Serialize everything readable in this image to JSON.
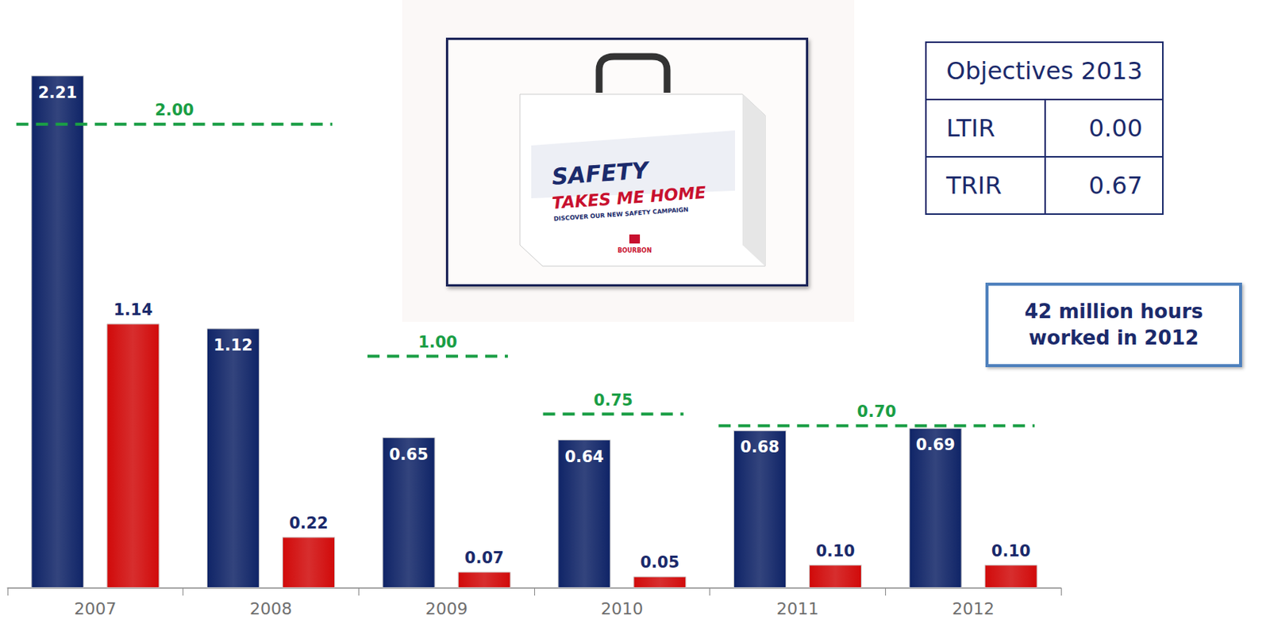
{
  "chart_data": {
    "type": "bar",
    "categories": [
      "2007",
      "2008",
      "2009",
      "2010",
      "2011",
      "2012"
    ],
    "series": [
      {
        "color": "#0f2467",
        "values": [
          2.21,
          1.12,
          0.65,
          0.64,
          0.68,
          0.69
        ],
        "value_labels": [
          "2.21",
          "1.12",
          "0.65",
          "0.64",
          "0.68",
          "0.69"
        ]
      },
      {
        "color": "#d10a0a",
        "values": [
          1.14,
          0.22,
          0.07,
          0.05,
          0.1,
          0.1
        ],
        "value_labels": [
          "1.14",
          "0.22",
          "0.07",
          "0.05",
          "0.10",
          "0.10"
        ]
      }
    ],
    "ylim": [
      0,
      2.5
    ],
    "yticks": [],
    "tick_labels": "x",
    "grid": false,
    "data_labels": true,
    "targets": {
      "from": [
        "2007",
        "2009",
        "2010",
        "2011"
      ],
      "to": [
        "2008",
        "2009",
        "2010",
        "2012"
      ],
      "values": [
        2.0,
        1.0,
        0.75,
        0.7
      ],
      "value_labels": [
        "2.00",
        "1.00",
        "0.75",
        "0.70"
      ],
      "color": "#1a9e45",
      "line_style": "dashed"
    }
  },
  "objectives": {
    "title": "Objectives 2013",
    "rows": [
      [
        "LTIR",
        "0.00"
      ],
      [
        "TRIR",
        "0.67"
      ]
    ]
  },
  "note": "42 million hours worked in 2012",
  "image": {
    "title": "SAFETY",
    "subtitle": "TAKES ME HOME",
    "caption": "DISCOVER OUR NEW SAFETY CAMPAIGN",
    "brand": "BOURBON"
  }
}
